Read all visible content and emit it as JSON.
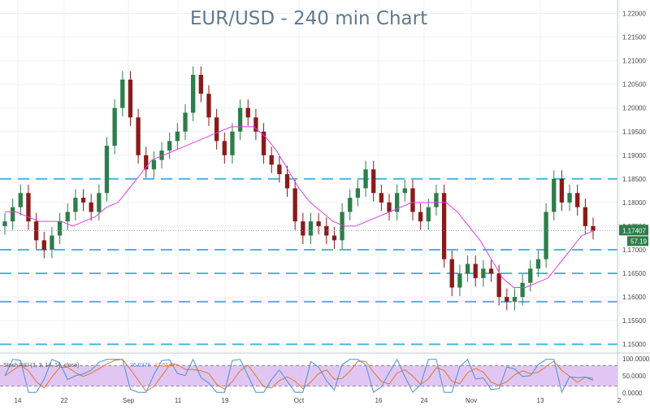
{
  "chart_data": {
    "type": "candlestick",
    "title": "EUR/USD - 240 min Chart",
    "instrument": "EUR/USD",
    "timeframe": "240 min",
    "price_axis": {
      "ylim": [
        1.1475,
        1.2225
      ],
      "ticks": [
        "1.22000",
        "1.21500",
        "1.21000",
        "1.20500",
        "1.20000",
        "1.19500",
        "1.19000",
        "1.18500",
        "1.18000",
        "1.17500",
        "1.17000",
        "1.16500",
        "1.16000",
        "1.15500",
        "1.15000"
      ]
    },
    "x_tick_labels": [
      "14",
      "22",
      "Sep",
      "11",
      "19",
      "Oct",
      "16",
      "24",
      "Nov",
      "13",
      "2"
    ],
    "current_price_label": "1.17407",
    "indicator_value_label": "57.19",
    "support_resistance_levels": [
      1.185,
      1.17,
      1.165,
      1.159,
      1.15
    ],
    "close_series": [
      1.176,
      1.179,
      1.182,
      1.176,
      1.172,
      1.17,
      1.173,
      1.176,
      1.178,
      1.181,
      1.18,
      1.178,
      1.182,
      1.192,
      1.2,
      1.206,
      1.198,
      1.19,
      1.187,
      1.189,
      1.191,
      1.193,
      1.195,
      1.199,
      1.207,
      1.203,
      1.198,
      1.193,
      1.19,
      1.195,
      1.2,
      1.198,
      1.195,
      1.19,
      1.188,
      1.186,
      1.183,
      1.176,
      1.173,
      1.176,
      1.175,
      1.173,
      1.172,
      1.178,
      1.181,
      1.183,
      1.187,
      1.182,
      1.18,
      1.178,
      1.182,
      1.183,
      1.178,
      1.176,
      1.179,
      1.182,
      1.168,
      1.162,
      1.165,
      1.167,
      1.164,
      1.166,
      1.165,
      1.16,
      1.159,
      1.16,
      1.163,
      1.166,
      1.168,
      1.178,
      1.185,
      1.18,
      1.182,
      1.179,
      1.175,
      1.174
    ],
    "moving_average": {
      "color": "#e040e0",
      "values": [
        1.178,
        1.178,
        1.177,
        1.176,
        1.176,
        1.176,
        1.175,
        1.176,
        1.177,
        1.179,
        1.18,
        1.183,
        1.186,
        1.189,
        1.19,
        1.191,
        1.192,
        1.193,
        1.194,
        1.195,
        1.196,
        1.196,
        1.196,
        1.194,
        1.191,
        1.187,
        1.183,
        1.18,
        1.178,
        1.176,
        1.175,
        1.175,
        1.176,
        1.177,
        1.178,
        1.179,
        1.18,
        1.18,
        1.18,
        1.18,
        1.178,
        1.175,
        1.172,
        1.168,
        1.164,
        1.162,
        1.162,
        1.163,
        1.164,
        1.167,
        1.17,
        1.173,
        1.174
      ]
    },
    "stochastic_rsi": {
      "ylim": [
        0,
        100
      ],
      "ticks": [
        "100.0000",
        "50.0000",
        "0.0000"
      ],
      "legend_label": "Stoch RSI (3, 3, 14, 14, close)",
      "k_value_label": "26.0378",
      "d_value_label": "17.5147",
      "overbought": 80,
      "oversold": 20,
      "k_color": "#4a90d9",
      "d_color": "#e0762a",
      "band_color": "#d9b8f0"
    },
    "colors": {
      "up_candle": "#2e7d4a",
      "down_candle": "#8b1a1a",
      "level_lines": "#4bb8e0",
      "current_price_tag": "#2e7d4a"
    }
  }
}
